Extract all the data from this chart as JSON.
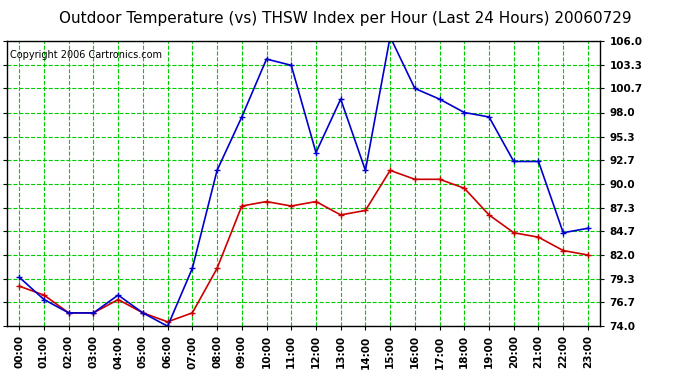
{
  "title": "Outdoor Temperature (vs) THSW Index per Hour (Last 24 Hours) 20060729",
  "copyright": "Copyright 2006 Cartronics.com",
  "hours": [
    "00:00",
    "01:00",
    "02:00",
    "03:00",
    "04:00",
    "05:00",
    "06:00",
    "07:00",
    "08:00",
    "09:00",
    "10:00",
    "11:00",
    "12:00",
    "13:00",
    "14:00",
    "15:00",
    "16:00",
    "17:00",
    "18:00",
    "19:00",
    "20:00",
    "21:00",
    "22:00",
    "23:00"
  ],
  "temp": [
    78.5,
    77.5,
    75.5,
    75.5,
    77.0,
    75.5,
    74.5,
    75.5,
    80.5,
    87.5,
    88.0,
    87.5,
    88.0,
    86.5,
    87.0,
    91.5,
    90.5,
    90.5,
    89.5,
    86.5,
    84.5,
    84.0,
    82.5,
    82.0
  ],
  "thsw": [
    79.5,
    77.0,
    75.5,
    75.5,
    77.5,
    75.5,
    74.0,
    80.5,
    91.5,
    97.5,
    104.0,
    103.3,
    93.5,
    99.5,
    91.5,
    106.5,
    100.7,
    99.5,
    98.0,
    97.5,
    92.5,
    92.5,
    84.5,
    85.0
  ],
  "temp_color": "#cc0000",
  "thsw_color": "#0000cc",
  "background_color": "#ffffff",
  "plot_background": "#ffffff",
  "grid_color": "#00cc00",
  "ylim": [
    74.0,
    106.0
  ],
  "yticks": [
    74.0,
    76.7,
    79.3,
    82.0,
    84.7,
    87.3,
    90.0,
    92.7,
    95.3,
    98.0,
    100.7,
    103.3,
    106.0
  ],
  "title_fontsize": 11,
  "copyright_fontsize": 7,
  "tick_fontsize": 7.5,
  "marker": "+",
  "marker_size": 4,
  "linewidth": 1.2
}
